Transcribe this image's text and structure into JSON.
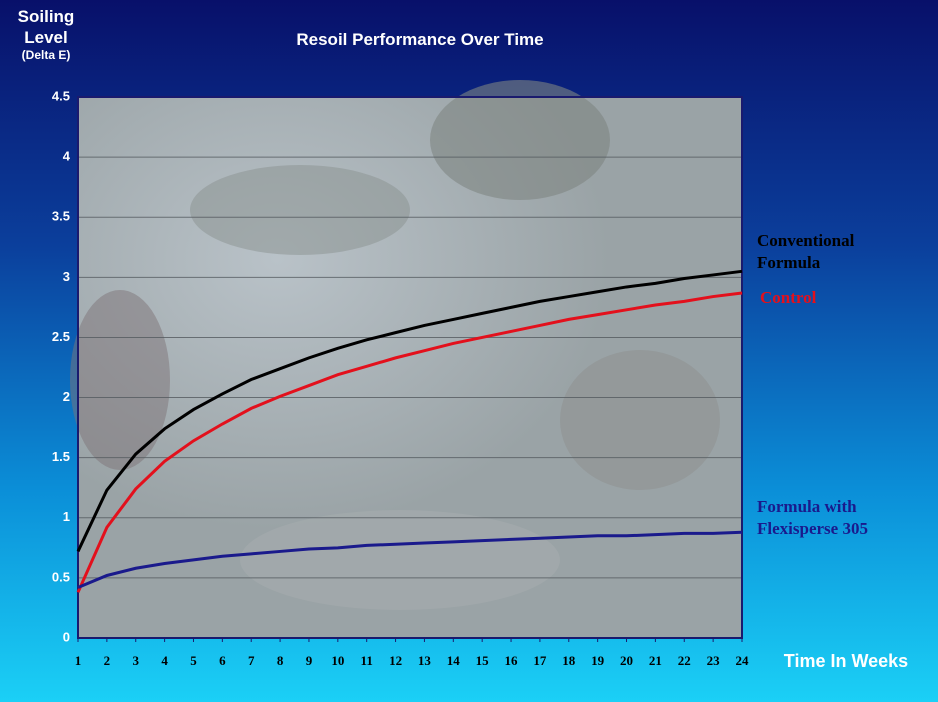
{
  "chart_data": {
    "type": "line",
    "title": "Resoil Performance Over Time",
    "ylabel": "Soiling Level",
    "ylabel_note": "(Delta E)",
    "xlabel": "Time In Weeks",
    "x": [
      1,
      2,
      3,
      4,
      5,
      6,
      7,
      8,
      9,
      10,
      11,
      12,
      13,
      14,
      15,
      16,
      17,
      18,
      19,
      20,
      21,
      22,
      23,
      24
    ],
    "xlim": [
      1,
      24
    ],
    "xticks": [
      1,
      2,
      3,
      4,
      5,
      6,
      7,
      8,
      9,
      10,
      11,
      12,
      13,
      14,
      15,
      16,
      17,
      18,
      19,
      20,
      21,
      22,
      23,
      24
    ],
    "ylim": [
      0,
      4.5
    ],
    "yticks": [
      0,
      0.5,
      1,
      1.5,
      2,
      2.5,
      3,
      3.5,
      4,
      4.5
    ],
    "grid": true,
    "series": [
      {
        "name": "Conventional Formula",
        "color": "#000000",
        "values": [
          0.72,
          1.23,
          1.53,
          1.74,
          1.9,
          2.03,
          2.15,
          2.24,
          2.33,
          2.41,
          2.48,
          2.54,
          2.6,
          2.65,
          2.7,
          2.75,
          2.8,
          2.84,
          2.88,
          2.92,
          2.95,
          2.99,
          3.02,
          3.05
        ]
      },
      {
        "name": "Control",
        "color": "#e3101c",
        "values": [
          0.38,
          0.92,
          1.24,
          1.47,
          1.64,
          1.78,
          1.91,
          2.01,
          2.1,
          2.19,
          2.26,
          2.33,
          2.39,
          2.45,
          2.5,
          2.55,
          2.6,
          2.65,
          2.69,
          2.73,
          2.77,
          2.8,
          2.84,
          2.87
        ]
      },
      {
        "name": "Formula with Flexisperse 305",
        "color": "#1a1a8c",
        "values": [
          0.42,
          0.52,
          0.58,
          0.62,
          0.65,
          0.68,
          0.7,
          0.72,
          0.74,
          0.75,
          0.77,
          0.78,
          0.79,
          0.8,
          0.81,
          0.82,
          0.83,
          0.84,
          0.85,
          0.85,
          0.86,
          0.87,
          0.87,
          0.88
        ]
      }
    ]
  }
}
